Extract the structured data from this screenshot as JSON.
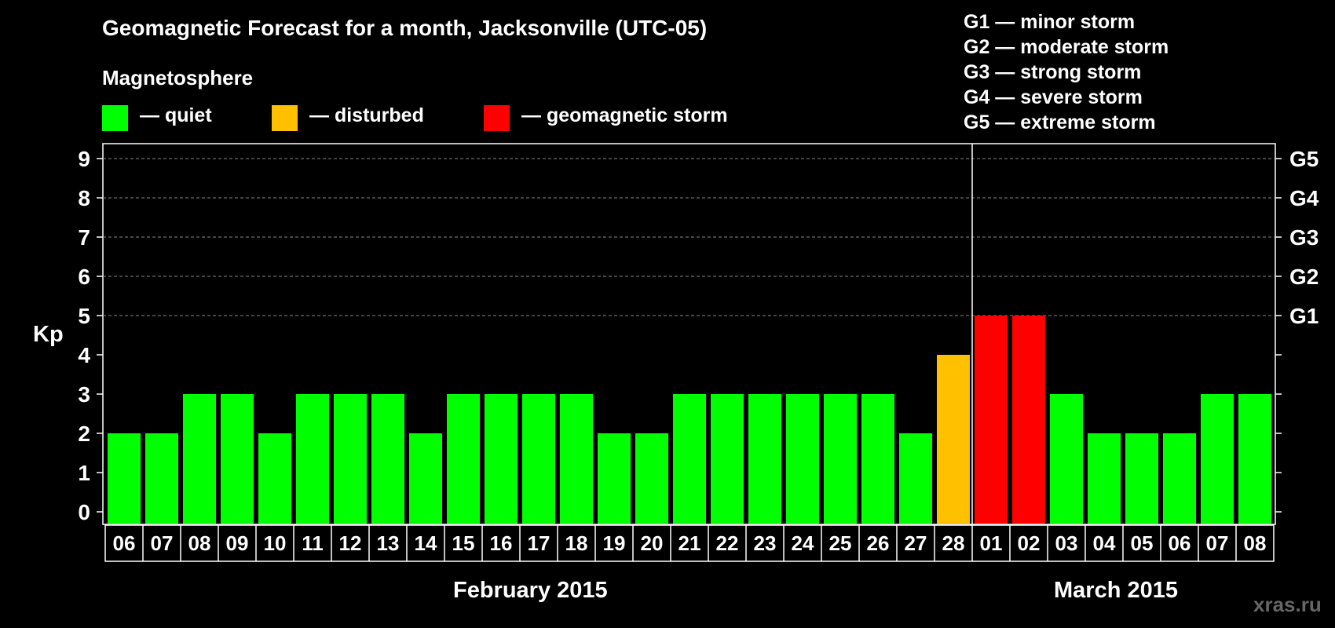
{
  "title": "Geomagnetic Forecast for a month, Jacksonville (UTC-05)",
  "magnetosphere_label": "Magnetosphere",
  "legend": {
    "quiet": "— quiet",
    "disturbed": "— disturbed",
    "storm": "— geomagnetic storm",
    "colors": {
      "quiet": "#00ff00",
      "disturbed": "#ffc000",
      "storm": "#ff0000"
    }
  },
  "g_legend": [
    "G1 — minor storm",
    "G2 — moderate storm",
    "G3 — strong storm",
    "G4 — severe storm",
    "G5 — extreme storm"
  ],
  "watermark": "xras.ru",
  "chart_data": {
    "type": "bar",
    "ylabel": "Kp",
    "ylim": [
      0,
      9
    ],
    "y_ticks": [
      0,
      1,
      2,
      3,
      4,
      5,
      6,
      7,
      8,
      9
    ],
    "right_axis_labels": [
      {
        "value": 5,
        "label": "G1"
      },
      {
        "value": 6,
        "label": "G2"
      },
      {
        "value": 7,
        "label": "G3"
      },
      {
        "value": 8,
        "label": "G4"
      },
      {
        "value": 9,
        "label": "G5"
      }
    ],
    "grid": "dashed horizontal at 5-9",
    "month_labels": [
      {
        "label": "February 2015",
        "days": [
          "06",
          "07",
          "08",
          "09",
          "10",
          "11",
          "12",
          "13",
          "14",
          "15",
          "16",
          "17",
          "18",
          "19",
          "20",
          "21",
          "22",
          "23",
          "24",
          "25",
          "26",
          "27",
          "28"
        ]
      },
      {
        "label": "March 2015",
        "days": [
          "01",
          "02",
          "03",
          "04",
          "05",
          "06",
          "07",
          "08"
        ]
      }
    ],
    "categories": [
      "06",
      "07",
      "08",
      "09",
      "10",
      "11",
      "12",
      "13",
      "14",
      "15",
      "16",
      "17",
      "18",
      "19",
      "20",
      "21",
      "22",
      "23",
      "24",
      "25",
      "26",
      "27",
      "28",
      "01",
      "02",
      "03",
      "04",
      "05",
      "06",
      "07",
      "08"
    ],
    "values": [
      2,
      2,
      3,
      3,
      2,
      3,
      3,
      3,
      2,
      3,
      3,
      3,
      3,
      2,
      2,
      3,
      3,
      3,
      3,
      3,
      3,
      2,
      4,
      5,
      5,
      3,
      2,
      2,
      2,
      3,
      3
    ],
    "status": [
      "quiet",
      "quiet",
      "quiet",
      "quiet",
      "quiet",
      "quiet",
      "quiet",
      "quiet",
      "quiet",
      "quiet",
      "quiet",
      "quiet",
      "quiet",
      "quiet",
      "quiet",
      "quiet",
      "quiet",
      "quiet",
      "quiet",
      "quiet",
      "quiet",
      "quiet",
      "disturbed",
      "storm",
      "storm",
      "quiet",
      "quiet",
      "quiet",
      "quiet",
      "quiet",
      "quiet"
    ]
  }
}
